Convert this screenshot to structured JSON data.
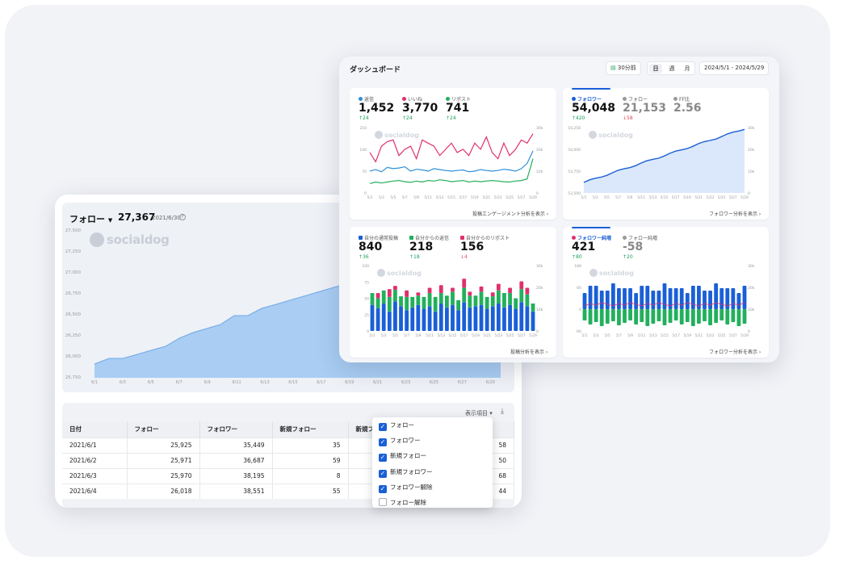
{
  "back": {
    "metric_label": "フォロー",
    "metric_value": "27,367",
    "metric_date": "2021/6/30",
    "logo": "socialdog",
    "y_ticks": [
      "27,500",
      "27,250",
      "27,000",
      "26,750",
      "26,500",
      "26,250",
      "26,000",
      "25,750"
    ],
    "x_ticks": [
      "6/1",
      "6/3",
      "6/5",
      "6/7",
      "6/9",
      "6/11",
      "6/13",
      "6/15",
      "6/17",
      "6/19",
      "6/21",
      "6/23",
      "6/25",
      "6/27",
      "6/29"
    ],
    "table_toolbar_label": "表示項目",
    "table_headers": [
      "日付",
      "フォロー",
      "フォロワー",
      "新規フォロー",
      "新規フ"
    ],
    "table_rows": [
      {
        "date": "2021/6/1",
        "follow": "25,925",
        "follower": "35,449",
        "new_follow": "35",
        "last": "58"
      },
      {
        "date": "2021/6/2",
        "follow": "25,971",
        "follower": "36,687",
        "new_follow": "59",
        "last": "50"
      },
      {
        "date": "2021/6/3",
        "follow": "25,970",
        "follower": "38,195",
        "new_follow": "8",
        "last": "68"
      },
      {
        "date": "2021/6/4",
        "follow": "26,018",
        "follower": "38,551",
        "new_follow": "55",
        "last": "44"
      }
    ],
    "dropdown_items": [
      {
        "label": "フォロー",
        "checked": true
      },
      {
        "label": "フォロワー",
        "checked": true
      },
      {
        "label": "新規フォロー",
        "checked": true
      },
      {
        "label": "新規フォロワー",
        "checked": true
      },
      {
        "label": "フォロワー解除",
        "checked": true
      },
      {
        "label": "フォロー解除",
        "checked": false
      }
    ]
  },
  "dashboard": {
    "title": "ダッシュボード",
    "updated": "30分前",
    "ranges": [
      "日",
      "週",
      "月"
    ],
    "active_range": "日",
    "date_range": "2024/5/1 - 2024/5/29",
    "x_ticks": [
      "5/1",
      "5/3",
      "5/5",
      "5/7",
      "5/9",
      "5/11",
      "5/13",
      "5/15",
      "5/17",
      "5/19",
      "5/21",
      "5/23",
      "5/25",
      "5/27",
      "5/29"
    ],
    "engagement": {
      "metrics": [
        {
          "label": "返信",
          "value": "1,452",
          "delta": "24",
          "dir": "up",
          "color": "#2f8fd8"
        },
        {
          "label": "いいね",
          "value": "3,770",
          "delta": "24",
          "dir": "up",
          "color": "#e0306e"
        },
        {
          "label": "リポスト",
          "value": "741",
          "delta": "24",
          "dir": "up",
          "color": "#22b05c"
        }
      ],
      "y_left": [
        "210",
        "140",
        "70",
        "0"
      ],
      "y_right": [
        "30k",
        "20k",
        "10k",
        "0"
      ],
      "link": "投稿エンゲージメント分析を表示"
    },
    "followers": {
      "metrics": [
        {
          "label": "フォロワー",
          "value": "54,048",
          "delta": "420",
          "dir": "up",
          "color": "#1b5fd6"
        },
        {
          "label": "フォロー",
          "value": "21,153",
          "delta": "58",
          "dir": "down",
          "color": "#999"
        },
        {
          "label": "FF比",
          "value": "2.56",
          "delta": "",
          "dir": "",
          "color": "#999"
        }
      ],
      "y_left": [
        "54,258",
        "54,000",
        "53,750",
        "53,500"
      ],
      "y_right": [
        "30k",
        "20k",
        "10k",
        "0"
      ],
      "link": "フォロワー分析を表示"
    },
    "posts": {
      "metrics": [
        {
          "label": "自分の通常投稿",
          "value": "840",
          "delta": "36",
          "dir": "up",
          "color": "#1b5fd6"
        },
        {
          "label": "自分からの返信",
          "value": "218",
          "delta": "18",
          "dir": "up",
          "color": "#22b05c"
        },
        {
          "label": "自分からのリポスト",
          "value": "156",
          "delta": "4",
          "dir": "down",
          "color": "#e0306e"
        }
      ],
      "y_left": [
        "100",
        "75",
        "50",
        "25",
        "0"
      ],
      "y_right": [
        "30k",
        "20k",
        "10k",
        "0"
      ],
      "link": "投稿分析を表示"
    },
    "netgain": {
      "metrics": [
        {
          "label": "フォロワー純増",
          "value": "421",
          "delta": "80",
          "dir": "up",
          "color": "#e0306e"
        },
        {
          "label": "フォロー純増",
          "value": "-58",
          "delta": "20",
          "dir": "up",
          "color": "#999"
        }
      ],
      "y_left": [
        "180",
        "60",
        "0",
        "-60"
      ],
      "y_right": [
        "30k",
        "20k",
        "10k",
        "0"
      ],
      "link": "フォロワー分析を表示"
    }
  }
}
